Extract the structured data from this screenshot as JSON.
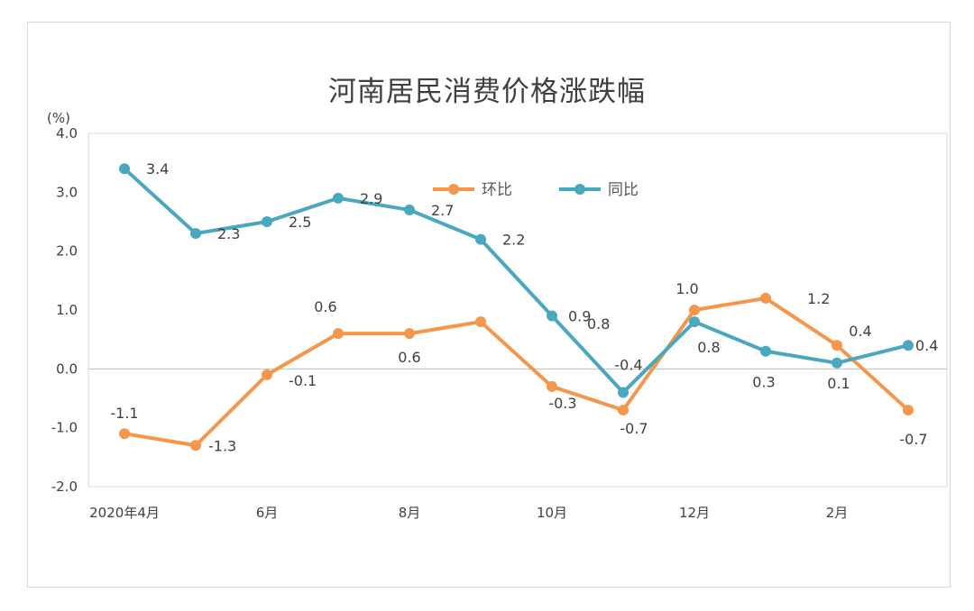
{
  "colors": {
    "mom": "#f4974c",
    "yoy": "#4aa7c0",
    "grid": "#d9d9d9",
    "axis": "#bfbfbf",
    "text": "#404040"
  },
  "chart_data": {
    "type": "line",
    "title": "河南居民消费价格涨跌幅",
    "ylabel": "(%)",
    "ylim": [
      -2.0,
      4.0
    ],
    "y_ticks": [
      "4.0",
      "3.0",
      "2.0",
      "1.0",
      "0.0",
      "-1.0",
      "-2.0"
    ],
    "x_tick_labels": [
      {
        "index": 0,
        "text": "2020年4月"
      },
      {
        "index": 2,
        "text": "6月"
      },
      {
        "index": 4,
        "text": "8月"
      },
      {
        "index": 6,
        "text": "10月"
      },
      {
        "index": 8,
        "text": "12月"
      },
      {
        "index": 10,
        "text": "2月"
      }
    ],
    "legend": [
      "环比",
      "同比"
    ],
    "legend_position": "top-right",
    "series": [
      {
        "name": "环比",
        "values": [
          -1.1,
          -1.3,
          -0.1,
          0.6,
          0.6,
          0.8,
          -0.3,
          -0.7,
          1.0,
          1.2,
          0.4,
          -0.7
        ],
        "labels": [
          "-1.1",
          "-1.3",
          "-0.1",
          "0.6",
          "0.6",
          "0.8",
          "-0.3",
          "-0.7",
          "1.0",
          "1.2",
          "0.4",
          "-0.7"
        ]
      },
      {
        "name": "同比",
        "values": [
          3.4,
          2.3,
          2.5,
          2.9,
          2.7,
          2.2,
          0.9,
          -0.4,
          0.8,
          0.3,
          0.1,
          0.4
        ],
        "labels": [
          "3.4",
          "2.3",
          "2.5",
          "2.9",
          "2.7",
          "2.2",
          "0.9",
          "-0.4",
          "0.8",
          "0.3",
          "0.1",
          "0.4"
        ]
      }
    ]
  }
}
